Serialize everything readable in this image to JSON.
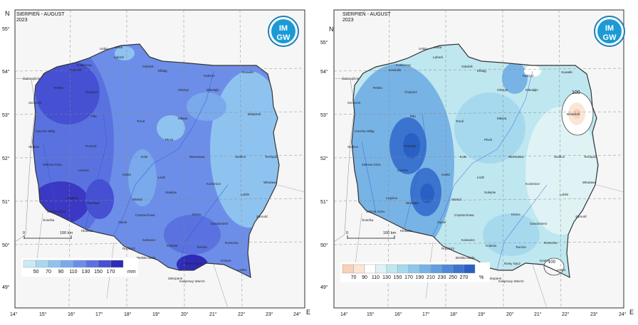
{
  "maps": [
    {
      "id": "precip",
      "header_line1": "SIERPIEŃ - AUGUST",
      "header_line2": "2023",
      "logo_top": "IM",
      "logo_bottom": "GW",
      "north_label": "N",
      "east_label": "E",
      "lat_labels": [
        "55°",
        "54°",
        "53°",
        "52°",
        "51°",
        "50°",
        "49°"
      ],
      "lon_labels": [
        "14°",
        "15°",
        "16°",
        "17°",
        "18°",
        "19°",
        "20°",
        "21°",
        "22°",
        "23°",
        "24°"
      ],
      "scale_left": "0",
      "scale_right": "100 km",
      "legend_values": [
        "50",
        "70",
        "90",
        "110",
        "130",
        "150",
        "170"
      ],
      "legend_unit": "mm",
      "legend_colors": [
        "#c9eaf6",
        "#a9d6f3",
        "#8ec3f0",
        "#7aa9ec",
        "#6a8fe8",
        "#5a72df",
        "#4650d3",
        "#2e2bb6"
      ],
      "cities": [
        "Ustka",
        "Łeba",
        "Lębork",
        "Gdańsk",
        "Elbląg",
        "Kętrzyn",
        "Suwałki",
        "Świnoujście",
        "Koszalin",
        "Olsztyn",
        "Mikołajki",
        "Resko",
        "Chojnice",
        "Białystok",
        "Szczecin",
        "Piła",
        "Toruń",
        "Mława",
        "Gorzów Wlkp.",
        "Płock",
        "Słubice",
        "Poznań",
        "Kołobrzeg",
        "Siedlce",
        "Terespol",
        "Zielona Góra",
        "Koło",
        "Warszawa",
        "Leszno",
        "Kalisz",
        "Łódź",
        "Włodawa",
        "Sulejów",
        "Kozienice",
        "Legnica",
        "Wrocław",
        "Wieluń",
        "Lublin",
        "Jelenia Góra",
        "Częstochowa",
        "Kielce",
        "Zamość",
        "Śnieżka",
        "Opole",
        "Sandomierz",
        "Kłodzko",
        "Katowice",
        "Rzeszów",
        "Racibórz",
        "Tarnów",
        "Kraków",
        "Bielsko-Biała",
        "Krosno",
        "Nowy Sącz",
        "Lesko",
        "Zakopane",
        "Kasprowy Wierch"
      ]
    },
    {
      "id": "percent",
      "header_line1": "SIERPIEŃ - AUGUST",
      "header_line2": "2023",
      "logo_top": "IM",
      "logo_bottom": "GW",
      "north_label": "N",
      "east_label": "E",
      "lat_labels": [
        "55°",
        "54°",
        "53°",
        "52°",
        "51°",
        "50°",
        "49°"
      ],
      "lon_labels": [
        "14°",
        "15°",
        "16°",
        "17°",
        "18°",
        "19°",
        "20°",
        "21°",
        "22°",
        "23°",
        "24°"
      ],
      "scale_left": "0",
      "scale_right": "100 km",
      "legend_values": [
        "70",
        "90",
        "110",
        "130",
        "150",
        "170",
        "190",
        "210",
        "230",
        "250",
        "270"
      ],
      "legend_unit": "%",
      "legend_colors": [
        "#f5d2b8",
        "#fbe6d6",
        "#ffffff",
        "#dff3f5",
        "#bfe7ef",
        "#a6d9ee",
        "#8fc7ec",
        "#78b3e6",
        "#619fe0",
        "#4d89d8",
        "#3b74cf",
        "#2a60c3"
      ],
      "contour_labels": [
        "100",
        "100"
      ],
      "cities": [
        "Ustka",
        "Łeba",
        "Lębork",
        "Gdańsk",
        "Elbląg",
        "Kętrzyn",
        "Suwałki",
        "Świnoujście",
        "Koszalin",
        "Olsztyn",
        "Mikołajki",
        "Resko",
        "Chojnice",
        "Białystok",
        "Szczecin",
        "Piła",
        "Toruń",
        "Mława",
        "Gorzów Wlkp.",
        "Płock",
        "Słubice",
        "Poznań",
        "Kołobrzeg",
        "Siedlce",
        "Terespol",
        "Zielona Góra",
        "Koło",
        "Warszawa",
        "Leszno",
        "Kalisz",
        "Łódź",
        "Włodawa",
        "Sulejów",
        "Kozienice",
        "Legnica",
        "Wrocław",
        "Wieluń",
        "Lublin",
        "Jelenia Góra",
        "Częstochowa",
        "Kielce",
        "Zamość",
        "Śnieżka",
        "Opole",
        "Sandomierz",
        "Kłodzko",
        "Katowice",
        "Rzeszów",
        "Racibórz",
        "Tarnów",
        "Kraków",
        "Bielsko-Biała",
        "Krosno",
        "Nowy Sącz",
        "Lesko",
        "Zakopane",
        "Kasprowy Wierch"
      ]
    }
  ]
}
